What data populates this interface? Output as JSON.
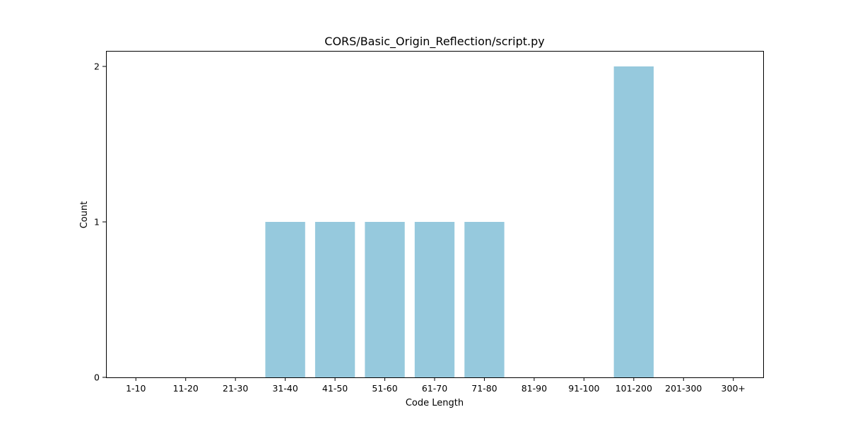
{
  "chart_data": {
    "type": "bar",
    "title": "CORS/Basic_Origin_Reflection/script.py",
    "xlabel": "Code Length",
    "ylabel": "Count",
    "categories": [
      "1-10",
      "11-20",
      "21-30",
      "31-40",
      "41-50",
      "51-60",
      "61-70",
      "71-80",
      "81-90",
      "91-100",
      "101-200",
      "201-300",
      "300+"
    ],
    "values": [
      0,
      0,
      0,
      1,
      1,
      1,
      1,
      1,
      0,
      0,
      2,
      0,
      0
    ],
    "ylim": [
      0,
      2.1
    ],
    "yticks": [
      0,
      1,
      2
    ],
    "grid": false,
    "bar_color": "#96c9dd",
    "axis_color": "#000000"
  }
}
